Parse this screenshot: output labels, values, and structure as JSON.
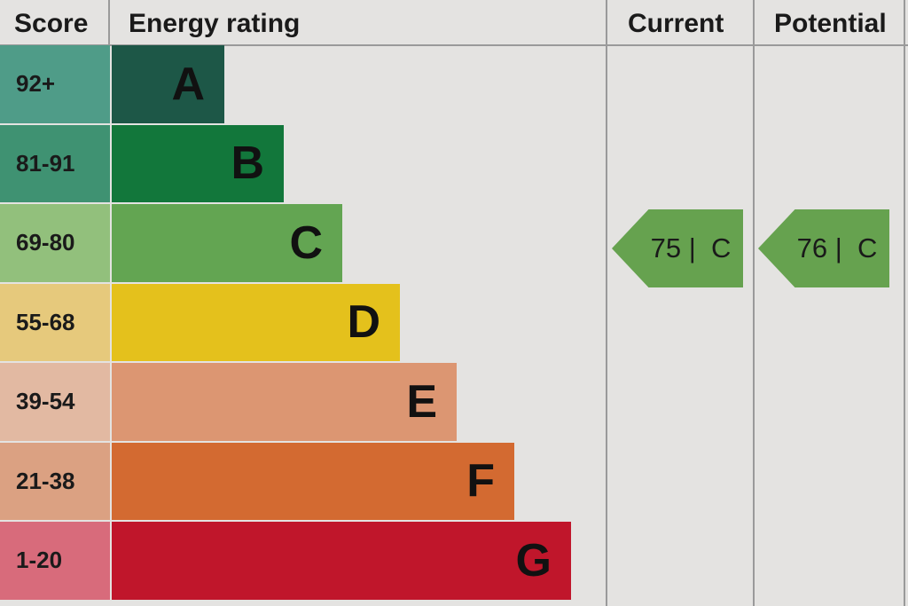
{
  "chart_data": {
    "type": "bar",
    "headers": {
      "score": "Score",
      "rating": "Energy rating",
      "current": "Current",
      "potential": "Potential"
    },
    "bands": [
      {
        "letter": "A",
        "range": "92+",
        "color": "#1d5747",
        "score_color": "#4f9c88"
      },
      {
        "letter": "B",
        "range": "81-91",
        "color": "#12773b",
        "score_color": "#3f9272"
      },
      {
        "letter": "C",
        "range": "69-80",
        "color": "#63a552",
        "score_color": "#92c07c"
      },
      {
        "letter": "D",
        "range": "55-68",
        "color": "#e4c11c",
        "score_color": "#e6c97c"
      },
      {
        "letter": "E",
        "range": "39-54",
        "color": "#dc9672",
        "score_color": "#e2b9a2"
      },
      {
        "letter": "F",
        "range": "21-38",
        "color": "#d36a31",
        "score_color": "#dba182"
      },
      {
        "letter": "G",
        "range": "1-20",
        "color": "#c0162b",
        "score_color": "#d86b7b"
      }
    ],
    "current": {
      "value": 75,
      "letter": "C",
      "label": "75 |  C",
      "color": "#66a24f"
    },
    "potential": {
      "value": 76,
      "letter": "C",
      "label": "76 |  C",
      "color": "#66a24f"
    }
  }
}
